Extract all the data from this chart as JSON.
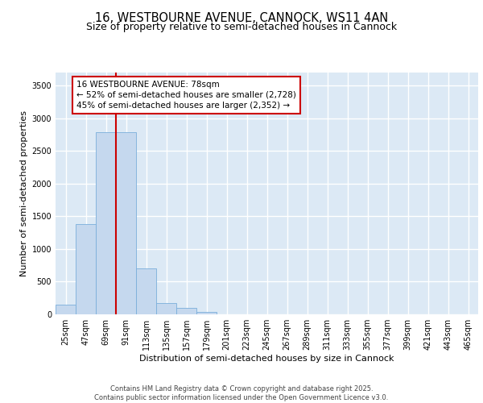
{
  "title_line1": "16, WESTBOURNE AVENUE, CANNOCK, WS11 4AN",
  "title_line2": "Size of property relative to semi-detached houses in Cannock",
  "xlabel": "Distribution of semi-detached houses by size in Cannock",
  "ylabel": "Number of semi-detached properties",
  "categories": [
    "25sqm",
    "47sqm",
    "69sqm",
    "91sqm",
    "113sqm",
    "135sqm",
    "157sqm",
    "179sqm",
    "201sqm",
    "223sqm",
    "245sqm",
    "267sqm",
    "289sqm",
    "311sqm",
    "333sqm",
    "355sqm",
    "377sqm",
    "399sqm",
    "421sqm",
    "443sqm",
    "465sqm"
  ],
  "values": [
    150,
    1380,
    2790,
    2790,
    700,
    175,
    100,
    40,
    5,
    0,
    0,
    0,
    0,
    0,
    0,
    0,
    0,
    0,
    0,
    0,
    0
  ],
  "bar_color": "#c5d8ee",
  "bar_edge_color": "#7aaedb",
  "vline_color": "#cc0000",
  "annotation_text": "16 WESTBOURNE AVENUE: 78sqm\n← 52% of semi-detached houses are smaller (2,728)\n45% of semi-detached houses are larger (2,352) →",
  "annotation_box_color": "#ffffff",
  "annotation_box_edge": "#cc0000",
  "ylim": [
    0,
    3700
  ],
  "yticks": [
    0,
    500,
    1000,
    1500,
    2000,
    2500,
    3000,
    3500
  ],
  "background_color": "#dce9f5",
  "grid_color": "#ffffff",
  "footer_line1": "Contains HM Land Registry data © Crown copyright and database right 2025.",
  "footer_line2": "Contains public sector information licensed under the Open Government Licence v3.0.",
  "title_fontsize": 10.5,
  "subtitle_fontsize": 9,
  "axis_label_fontsize": 8,
  "tick_fontsize": 7,
  "annotation_fontsize": 7.5
}
